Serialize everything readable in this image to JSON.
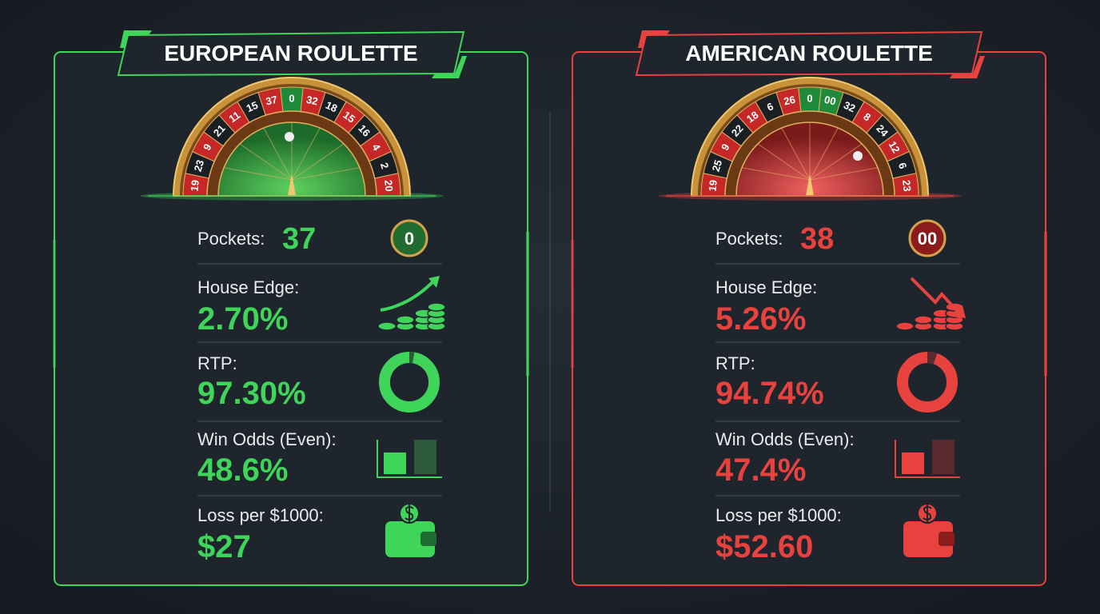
{
  "panels": [
    {
      "title": "EUROPEAN ROULETTE",
      "wheel_numbers": [
        "19",
        "23",
        "9",
        "21",
        "11",
        "15",
        "37",
        "0",
        "32",
        "18",
        "15",
        "16",
        "4",
        "2",
        "20"
      ],
      "badge": "0",
      "rows": [
        {
          "label": "Pockets:",
          "value": "37"
        },
        {
          "label": "House Edge:",
          "value": "2.70%"
        },
        {
          "label": "RTP:",
          "value": "97.30%"
        },
        {
          "label": "Win Odds (Even):",
          "value": "48.6%"
        },
        {
          "label": "Loss per $1000:",
          "value": "$27"
        }
      ]
    },
    {
      "title": "AMERICAN ROULETTE",
      "wheel_numbers": [
        "19",
        "25",
        "9",
        "22",
        "18",
        "6",
        "26",
        "0",
        "00",
        "32",
        "8",
        "24",
        "12",
        "6",
        "23"
      ],
      "badge": "00",
      "rows": [
        {
          "label": "Pockets:",
          "value": "38"
        },
        {
          "label": "House Edge:",
          "value": "5.26%"
        },
        {
          "label": "RTP:",
          "value": "94.74%"
        },
        {
          "label": "Win Odds (Even):",
          "value": "47.4%"
        },
        {
          "label": "Loss per $1000:",
          "value": "$52.60"
        }
      ]
    }
  ]
}
